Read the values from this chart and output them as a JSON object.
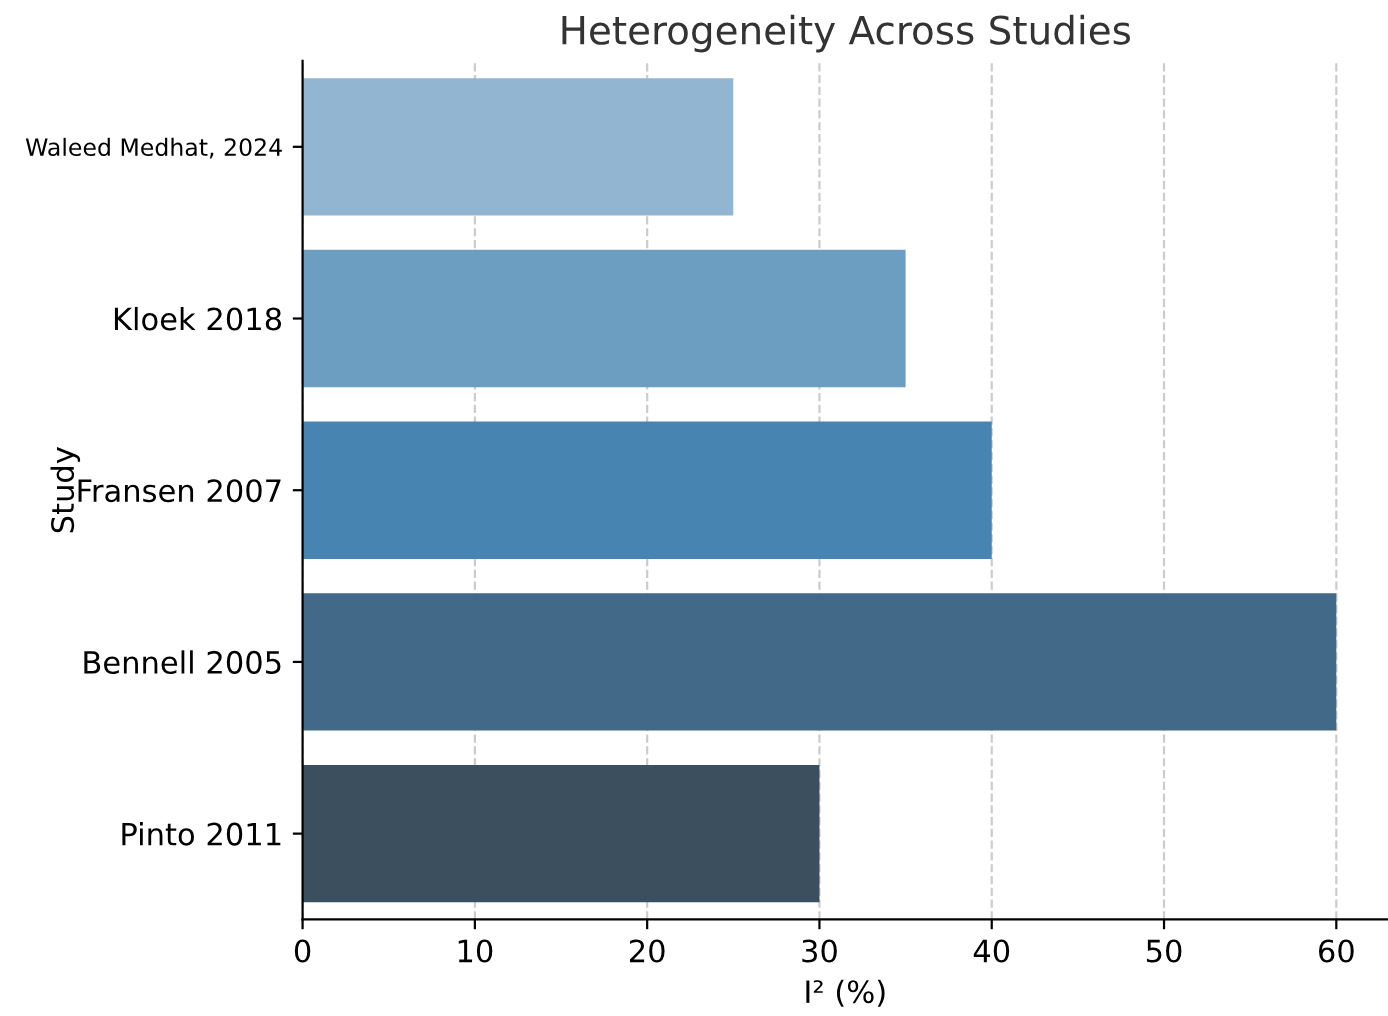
{
  "chart_data": {
    "type": "bar",
    "orientation": "horizontal",
    "title": "Heterogeneity Across Studies",
    "xlabel": "I² (%)",
    "ylabel": "Study",
    "categories": [
      "Waleed Medhat, 2024",
      "Kloek 2018",
      "Fransen 2007",
      "Bennell 2005",
      "Pinto 2011"
    ],
    "values": [
      25,
      35,
      40,
      60,
      30
    ],
    "colors": [
      "#92b6d2",
      "#6b9ec1",
      "#4884b1",
      "#426a88",
      "#3b4f5e"
    ],
    "xlim": [
      0,
      63
    ],
    "xticks": [
      0,
      10,
      20,
      30,
      40,
      50,
      60
    ],
    "grid": "x"
  }
}
